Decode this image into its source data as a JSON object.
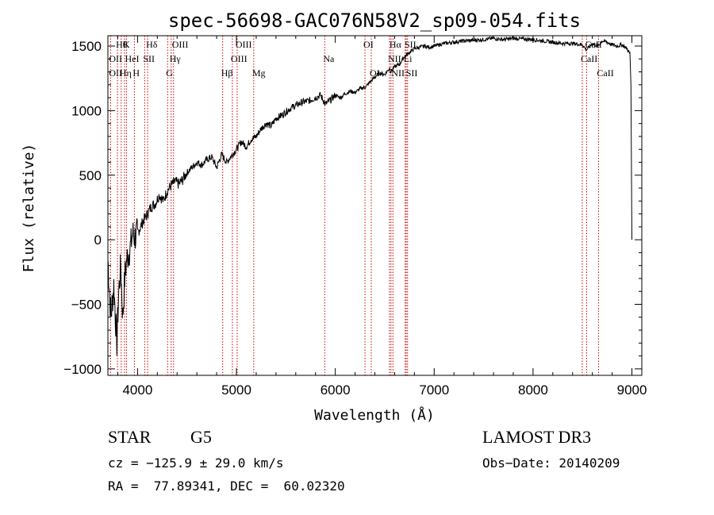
{
  "chart_data": {
    "type": "line",
    "title": "spec-56698-GAC076N58V2_sp09-054.fits",
    "xlabel": "Wavelength (Å)",
    "ylabel": "Flux (relative)",
    "xlim": [
      3700,
      9100
    ],
    "ylim": [
      -1050,
      1580
    ],
    "xticks": [
      {
        "v": 4000,
        "label": "4000"
      },
      {
        "v": 5000,
        "label": "5000"
      },
      {
        "v": 6000,
        "label": "6000"
      },
      {
        "v": 7000,
        "label": "7000"
      },
      {
        "v": 8000,
        "label": "8000"
      },
      {
        "v": 9000,
        "label": "9000"
      }
    ],
    "yticks": [
      {
        "v": -1000,
        "label": "−1000"
      },
      {
        "v": -500,
        "label": "−500"
      },
      {
        "v": 0,
        "label": "0"
      },
      {
        "v": 500,
        "label": "500"
      },
      {
        "v": 1000,
        "label": "1000"
      },
      {
        "v": 1500,
        "label": "1500"
      }
    ],
    "series": [
      {
        "name": "flux",
        "x": [
          3700,
          3730,
          3760,
          3790,
          3810,
          3830,
          3850,
          3870,
          3890,
          3910,
          3930,
          3950,
          3970,
          4000,
          4030,
          4060,
          4100,
          4140,
          4180,
          4220,
          4260,
          4300,
          4340,
          4380,
          4420,
          4460,
          4500,
          4550,
          4600,
          4650,
          4700,
          4750,
          4800,
          4850,
          4900,
          4950,
          5000,
          5050,
          5100,
          5150,
          5200,
          5250,
          5300,
          5350,
          5400,
          5450,
          5500,
          5550,
          5600,
          5650,
          5700,
          5750,
          5800,
          5850,
          5900,
          5950,
          6000,
          6050,
          6100,
          6150,
          6200,
          6250,
          6300,
          6350,
          6400,
          6450,
          6500,
          6550,
          6560,
          6600,
          6650,
          6700,
          6750,
          6800,
          6850,
          6900,
          6950,
          7000,
          7100,
          7200,
          7300,
          7400,
          7500,
          7600,
          7700,
          7800,
          7900,
          8000,
          8100,
          8200,
          8300,
          8400,
          8500,
          8540,
          8600,
          8660,
          8700,
          8750,
          8800,
          8850,
          8900,
          8950,
          8980,
          8990,
          9000
        ],
        "y": [
          -150,
          -600,
          -350,
          -800,
          -400,
          -200,
          -600,
          -300,
          -150,
          -100,
          -50,
          50,
          20,
          50,
          100,
          150,
          200,
          260,
          280,
          350,
          300,
          380,
          420,
          450,
          430,
          470,
          520,
          560,
          600,
          580,
          620,
          640,
          560,
          660,
          600,
          650,
          700,
          760,
          720,
          780,
          800,
          860,
          900,
          880,
          940,
          960,
          990,
          1020,
          1040,
          1060,
          1070,
          1080,
          1100,
          1120,
          1050,
          1080,
          1120,
          1100,
          1130,
          1150,
          1140,
          1170,
          1180,
          1220,
          1260,
          1290,
          1280,
          1330,
          1300,
          1340,
          1360,
          1420,
          1450,
          1480,
          1490,
          1500,
          1490,
          1500,
          1520,
          1530,
          1540,
          1545,
          1550,
          1560,
          1550,
          1560,
          1555,
          1550,
          1540,
          1530,
          1520,
          1520,
          1510,
          1470,
          1520,
          1500,
          1540,
          1530,
          1510,
          1500,
          1510,
          1480,
          1440,
          1200,
          0
        ]
      }
    ],
    "lines": [
      {
        "x": 3797,
        "label": "Hθ",
        "row": 0
      },
      {
        "x": 3869,
        "label": "K",
        "row": 0
      },
      {
        "x": 4102,
        "label": "Hδ",
        "row": 0
      },
      {
        "x": 4364,
        "label": "OIII",
        "row": 0
      },
      {
        "x": 5007,
        "label": "OIII",
        "row": 0
      },
      {
        "x": 6300,
        "label": "OI",
        "row": 0
      },
      {
        "x": 6563,
        "label": "Hα",
        "row": 0
      },
      {
        "x": 6717,
        "label": "SII",
        "row": 0
      },
      {
        "x": 8542,
        "label": "CaII",
        "row": 0
      },
      {
        "x": 3727,
        "label": "OII",
        "row": 1
      },
      {
        "x": 3889,
        "label": "HeI",
        "row": 1
      },
      {
        "x": 4072,
        "label": "SII",
        "row": 1
      },
      {
        "x": 4340,
        "label": "Hγ",
        "row": 1
      },
      {
        "x": 4959,
        "label": "OIII",
        "row": 1
      },
      {
        "x": 5893,
        "label": "Na",
        "row": 1
      },
      {
        "x": 6548,
        "label": "NII",
        "row": 1
      },
      {
        "x": 6707,
        "label": "Li",
        "row": 1
      },
      {
        "x": 8498,
        "label": "CaII",
        "row": 1
      },
      {
        "x": 3727,
        "label": "OII",
        "row": 2
      },
      {
        "x": 3835,
        "label": "Hη",
        "row": 2
      },
      {
        "x": 3968,
        "label": "H",
        "row": 2
      },
      {
        "x": 4304,
        "label": "G",
        "row": 2
      },
      {
        "x": 4861,
        "label": "Hβ",
        "row": 2
      },
      {
        "x": 5175,
        "label": "Mg",
        "row": 2
      },
      {
        "x": 6364,
        "label": "OI",
        "row": 2
      },
      {
        "x": 6583,
        "label": "NII",
        "row": 2
      },
      {
        "x": 6731,
        "label": "SII",
        "row": 2
      },
      {
        "x": 8662,
        "label": "CaII",
        "row": 2
      }
    ]
  },
  "info": {
    "class_label": "STAR",
    "subclass": "G5",
    "survey": "LAMOST DR3",
    "cz": "cz = −125.9 ± 29.0 km/s",
    "obs_date": "Obs−Date: 20140209",
    "coords": "RA =  77.89341, DEC =  60.02320"
  },
  "colors": {
    "line_marker": "#cc0000",
    "spectrum": "#000000",
    "axis": "#000000"
  }
}
